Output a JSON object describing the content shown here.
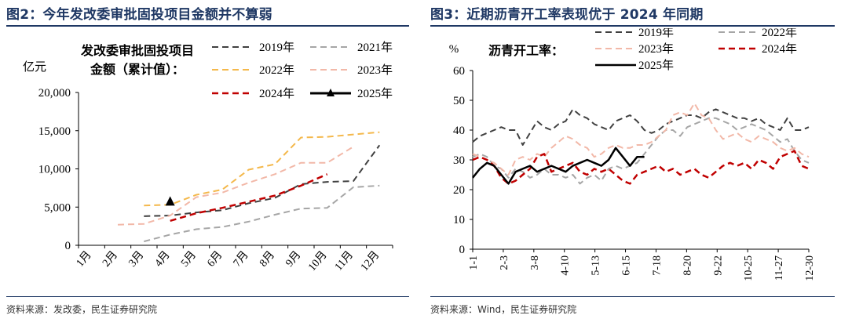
{
  "left_panel": {
    "title": "图2：今年发改委审批固投项目金额并不算弱",
    "source": "资料来源：发改委，民生证券研究院"
  },
  "right_panel": {
    "title": "图3：近期沥青开工率表现优于 2024 年同期",
    "source": "资料来源：Wind，民生证券研究院"
  },
  "chart_data": [
    {
      "type": "line",
      "title_lines": [
        "发改委审批固投项目",
        "金额（累计值）："
      ],
      "ylabel": "亿元",
      "categories": [
        "1月",
        "2月",
        "3月",
        "4月",
        "5月",
        "6月",
        "7月",
        "8月",
        "9月",
        "10月",
        "11月",
        "12月"
      ],
      "y_ticks": [
        "0",
        "5,000",
        "10,000",
        "15,000",
        "20,000"
      ],
      "ylim": [
        0,
        20000
      ],
      "grid": false,
      "legend_position": "top",
      "series": [
        {
          "name": "2019年",
          "color": "#404040",
          "dash": "8,5",
          "width": 2,
          "marker": null,
          "values": [
            null,
            null,
            3800,
            3900,
            4300,
            4600,
            5500,
            6200,
            8000,
            8300,
            8400,
            13100
          ]
        },
        {
          "name": "2021年",
          "color": "#a6a6a6",
          "dash": "8,5",
          "width": 2,
          "marker": null,
          "values": [
            null,
            null,
            500,
            1400,
            2100,
            2400,
            3100,
            4000,
            4800,
            4900,
            7600,
            7800
          ]
        },
        {
          "name": "2022年",
          "color": "#f4b84b",
          "dash": "8,5",
          "width": 2,
          "marker": null,
          "values": [
            null,
            null,
            5200,
            5300,
            6600,
            7300,
            9900,
            10600,
            14100,
            14200,
            14500,
            14800
          ]
        },
        {
          "name": "2023年",
          "color": "#f2b8a8",
          "dash": "8,5",
          "width": 2,
          "marker": null,
          "values": [
            null,
            2700,
            2800,
            3900,
            6300,
            6900,
            8200,
            9300,
            10800,
            10800,
            12900,
            null
          ]
        },
        {
          "name": "2024年",
          "color": "#c00000",
          "dash": "8,5",
          "width": 2.5,
          "marker": null,
          "values": [
            null,
            null,
            null,
            3200,
            4200,
            4900,
            5700,
            6500,
            7800,
            9300,
            null,
            null
          ]
        },
        {
          "name": "2025年",
          "color": "#000000",
          "dash": "",
          "width": 3,
          "marker": "triangle",
          "values": [
            null,
            null,
            null,
            5700,
            null,
            null,
            null,
            null,
            null,
            null,
            null,
            null
          ]
        }
      ]
    },
    {
      "type": "line",
      "title": "沥青开工率：",
      "ylabel": "%",
      "x_ticks": [
        "1-1",
        "2-3",
        "3-8",
        "4-10",
        "5-13",
        "6-15",
        "7-18",
        "8-20",
        "9-22",
        "10-25",
        "11-27",
        "12-30"
      ],
      "y_ticks": [
        "0",
        "10",
        "20",
        "30",
        "40",
        "50",
        "60"
      ],
      "ylim": [
        0,
        60
      ],
      "grid": false,
      "legend_position": "top",
      "series": [
        {
          "name": "2019年",
          "color": "#404040",
          "dash": "8,5",
          "width": 2,
          "values": [
            36,
            38,
            39,
            40,
            41,
            40,
            40,
            35,
            39,
            43,
            41,
            40,
            42,
            43,
            47,
            45,
            44,
            42,
            41,
            40,
            43,
            44,
            45,
            43,
            40,
            39,
            40,
            42,
            43,
            44,
            45,
            45,
            44,
            46,
            47,
            46,
            45,
            44,
            44,
            43,
            44,
            42,
            41,
            40,
            44,
            40,
            40,
            41
          ]
        },
        {
          "name": "2022年",
          "color": "#a6a6a6",
          "dash": "8,5",
          "width": 2,
          "values": [
            31,
            32,
            31,
            28,
            27,
            24,
            27,
            26,
            24,
            25,
            27,
            25,
            25,
            24,
            25,
            22,
            24,
            25,
            23,
            27,
            28,
            27,
            28,
            29,
            32,
            35,
            38,
            40,
            40,
            38,
            41,
            42,
            43,
            44,
            44,
            43,
            42,
            40,
            41,
            42,
            41,
            40,
            38,
            36,
            37,
            33,
            30,
            29
          ]
        },
        {
          "name": "2023年",
          "color": "#f2b8a8",
          "dash": "8,5",
          "width": 2,
          "values": [
            32,
            31,
            30,
            29,
            27,
            25,
            30,
            31,
            30,
            32,
            31,
            34,
            36,
            38,
            37,
            35,
            34,
            31,
            32,
            34,
            35,
            34,
            34,
            35,
            35,
            36,
            38,
            40,
            45,
            46,
            45,
            49,
            45,
            44,
            40,
            37,
            38,
            39,
            37,
            36,
            38,
            37,
            36,
            34,
            33,
            34,
            32,
            31
          ]
        },
        {
          "name": "2024年",
          "color": "#c00000",
          "dash": "8,5",
          "width": 2.5,
          "values": [
            30,
            31,
            30,
            28,
            24,
            22,
            23,
            25,
            27,
            31,
            32,
            26,
            27,
            28,
            29,
            26,
            25,
            27,
            26,
            27,
            25,
            23,
            22,
            25,
            26,
            27,
            28,
            26,
            27,
            25,
            26,
            27,
            25,
            24,
            26,
            28,
            29,
            28,
            29,
            27,
            30,
            29,
            27,
            31,
            32,
            33,
            28,
            27
          ]
        },
        {
          "name": "2025年",
          "color": "#000000",
          "dash": "",
          "width": 2.5,
          "values": [
            24,
            27,
            29,
            28,
            25,
            22,
            26,
            27,
            28,
            26,
            27,
            28,
            27,
            26,
            28,
            29,
            30,
            29,
            28,
            30,
            34,
            31,
            28,
            31,
            31,
            null,
            null,
            null,
            null,
            null,
            null,
            null,
            null,
            null,
            null,
            null,
            null,
            null,
            null,
            null,
            null,
            null,
            null,
            null,
            null,
            null,
            null,
            null
          ]
        }
      ]
    }
  ]
}
